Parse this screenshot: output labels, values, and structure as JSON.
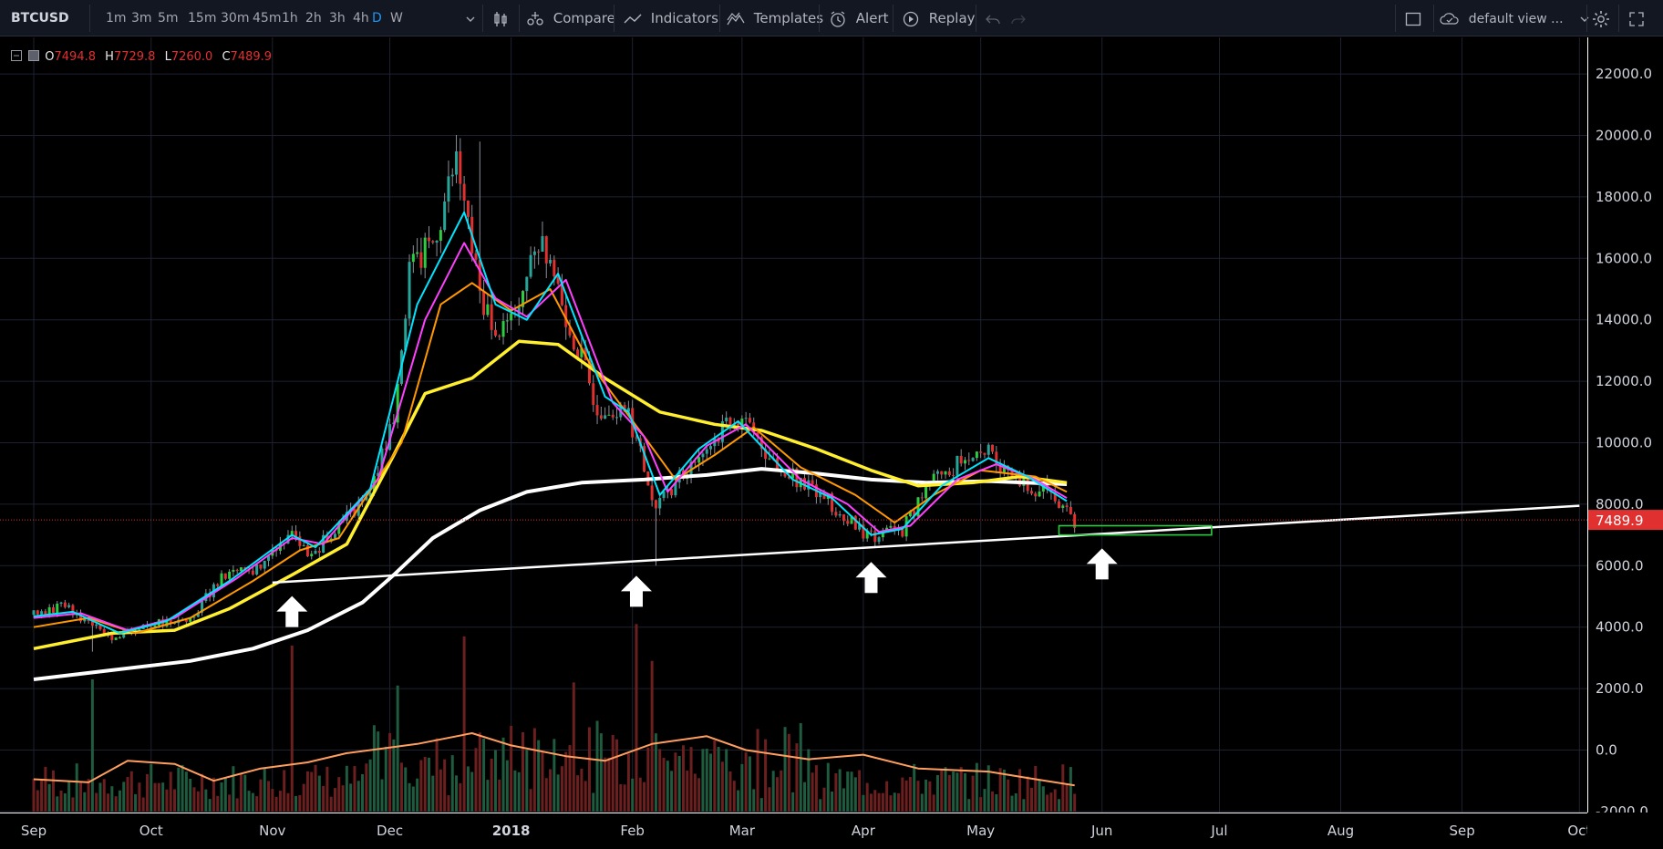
{
  "toolbar": {
    "symbol": "BTCUSD",
    "timeframes": [
      "1m",
      "3m",
      "5m",
      "15m",
      "30m",
      "45m",
      "1h",
      "2h",
      "3h",
      "4h",
      "D",
      "W"
    ],
    "active_timeframe": "D",
    "compare_label": "Compare",
    "indicators_label": "Indicators",
    "templates_label": "Templates",
    "alert_label": "Alert",
    "replay_label": "Replay",
    "layout_label": "default view ...",
    "icons": [
      "chevron-down-icon",
      "bar-style-icon",
      "compare-icon",
      "indicators-icon",
      "templates-icon",
      "alert-icon",
      "replay-icon",
      "undo-icon",
      "redo-icon",
      "square-icon",
      "cloud-icon",
      "gear-icon",
      "fullscreen-icon"
    ]
  },
  "legend": {
    "o_label": "O",
    "o_value": "7494.8",
    "h_label": "H",
    "h_value": "7729.8",
    "l_label": "L",
    "l_value": "7260.0",
    "c_label": "C",
    "c_value": "7489.9"
  },
  "last_price_label": "7489.9",
  "colors": {
    "up": "#26a69a",
    "up_bright": "#2ecc40",
    "down": "#e0302f",
    "ema_fast": "#00e5ff",
    "ema_mid": "#ff40ff",
    "ema_slow": "#ff9800",
    "ma_yellow": "#ffef2e",
    "ma_white": "#ffffff",
    "volume_ma": "#ff9e5e",
    "box": "#2ecc40",
    "last_price_bg": "#e0302f"
  },
  "chart_data": {
    "type": "candlestick",
    "symbol": "BTCUSD",
    "interval": "D",
    "ylim": [
      -2000,
      22000
    ],
    "price_ticks": [
      "22000.0",
      "20000.0",
      "18000.0",
      "16000.0",
      "14000.0",
      "12000.0",
      "10000.0",
      "8000.0",
      "6000.0",
      "4000.0",
      "2000.0",
      "0.0",
      "-2000.0"
    ],
    "price_tick_values": [
      22000,
      20000,
      18000,
      16000,
      14000,
      12000,
      10000,
      8000,
      6000,
      4000,
      2000,
      0,
      -2000
    ],
    "time_ticks": [
      "Sep",
      "Oct",
      "Nov",
      "Dec",
      "2018",
      "Feb",
      "Mar",
      "Apr",
      "May",
      "Jun",
      "Jul",
      "Aug",
      "Sep",
      "Oct"
    ],
    "time_tick_days": [
      0,
      30,
      61,
      91,
      122,
      153,
      181,
      212,
      242,
      273,
      303,
      334,
      365,
      395
    ],
    "price_path": [
      [
        0,
        4400
      ],
      [
        8,
        4700
      ],
      [
        14,
        4100
      ],
      [
        20,
        3700
      ],
      [
        28,
        4050
      ],
      [
        40,
        4300
      ],
      [
        48,
        5600
      ],
      [
        58,
        5900
      ],
      [
        66,
        7300
      ],
      [
        70,
        6200
      ],
      [
        76,
        7100
      ],
      [
        86,
        8200
      ],
      [
        92,
        10900
      ],
      [
        96,
        15500
      ],
      [
        102,
        16500
      ],
      [
        108,
        19200
      ],
      [
        114,
        14800
      ],
      [
        120,
        13500
      ],
      [
        130,
        16800
      ],
      [
        136,
        14200
      ],
      [
        144,
        11200
      ],
      [
        152,
        11000
      ],
      [
        159,
        7700
      ],
      [
        162,
        8400
      ],
      [
        170,
        9600
      ],
      [
        176,
        10400
      ],
      [
        182,
        10800
      ],
      [
        190,
        9100
      ],
      [
        198,
        8700
      ],
      [
        206,
        7700
      ],
      [
        214,
        6900
      ],
      [
        222,
        7200
      ],
      [
        228,
        8500
      ],
      [
        236,
        9300
      ],
      [
        244,
        9600
      ],
      [
        250,
        8700
      ],
      [
        258,
        8450
      ],
      [
        266,
        7490
      ]
    ],
    "wicks": [
      [
        15,
        3200
      ],
      [
        159,
        6000
      ],
      [
        114,
        19800
      ],
      [
        130,
        17200
      ]
    ],
    "ema_fast": [
      [
        0,
        4350
      ],
      [
        10,
        4500
      ],
      [
        22,
        3800
      ],
      [
        34,
        4200
      ],
      [
        50,
        5500
      ],
      [
        66,
        7000
      ],
      [
        72,
        6600
      ],
      [
        86,
        8500
      ],
      [
        98,
        14500
      ],
      [
        110,
        17500
      ],
      [
        118,
        14500
      ],
      [
        126,
        14000
      ],
      [
        134,
        15500
      ],
      [
        146,
        11500
      ],
      [
        152,
        11000
      ],
      [
        160,
        8300
      ],
      [
        170,
        9800
      ],
      [
        180,
        10700
      ],
      [
        194,
        8800
      ],
      [
        204,
        8200
      ],
      [
        214,
        7000
      ],
      [
        222,
        7200
      ],
      [
        232,
        8600
      ],
      [
        244,
        9500
      ],
      [
        254,
        8900
      ],
      [
        264,
        8100
      ]
    ],
    "ema_mid": [
      [
        0,
        4300
      ],
      [
        12,
        4450
      ],
      [
        24,
        3900
      ],
      [
        36,
        4300
      ],
      [
        52,
        5600
      ],
      [
        66,
        6900
      ],
      [
        74,
        6700
      ],
      [
        88,
        8800
      ],
      [
        100,
        14000
      ],
      [
        110,
        16500
      ],
      [
        118,
        14700
      ],
      [
        126,
        14100
      ],
      [
        136,
        15300
      ],
      [
        148,
        11300
      ],
      [
        156,
        10200
      ],
      [
        162,
        8400
      ],
      [
        172,
        9900
      ],
      [
        182,
        10600
      ],
      [
        196,
        8800
      ],
      [
        208,
        8000
      ],
      [
        216,
        7100
      ],
      [
        224,
        7300
      ],
      [
        236,
        8800
      ],
      [
        246,
        9300
      ],
      [
        256,
        8800
      ],
      [
        264,
        8200
      ]
    ],
    "ema_slow": [
      [
        0,
        4000
      ],
      [
        14,
        4300
      ],
      [
        26,
        3800
      ],
      [
        40,
        4300
      ],
      [
        56,
        5500
      ],
      [
        68,
        6500
      ],
      [
        78,
        6900
      ],
      [
        94,
        10000
      ],
      [
        104,
        14500
      ],
      [
        112,
        15200
      ],
      [
        122,
        14300
      ],
      [
        132,
        15000
      ],
      [
        142,
        12600
      ],
      [
        156,
        10200
      ],
      [
        164,
        8800
      ],
      [
        174,
        9600
      ],
      [
        184,
        10500
      ],
      [
        196,
        9200
      ],
      [
        210,
        8300
      ],
      [
        220,
        7400
      ],
      [
        230,
        8300
      ],
      [
        242,
        9100
      ],
      [
        256,
        8900
      ],
      [
        264,
        8400
      ]
    ],
    "ma_yellow": [
      [
        0,
        3300
      ],
      [
        20,
        3800
      ],
      [
        36,
        3900
      ],
      [
        50,
        4600
      ],
      [
        66,
        5700
      ],
      [
        80,
        6700
      ],
      [
        92,
        9600
      ],
      [
        100,
        11600
      ],
      [
        112,
        12100
      ],
      [
        124,
        13300
      ],
      [
        134,
        13200
      ],
      [
        146,
        12100
      ],
      [
        160,
        11000
      ],
      [
        174,
        10600
      ],
      [
        186,
        10400
      ],
      [
        200,
        9800
      ],
      [
        214,
        9100
      ],
      [
        226,
        8600
      ],
      [
        240,
        8700
      ],
      [
        252,
        8900
      ],
      [
        264,
        8700
      ]
    ],
    "ma_white": [
      [
        0,
        2300
      ],
      [
        20,
        2600
      ],
      [
        40,
        2900
      ],
      [
        56,
        3300
      ],
      [
        70,
        3900
      ],
      [
        84,
        4800
      ],
      [
        92,
        5700
      ],
      [
        102,
        6900
      ],
      [
        114,
        7800
      ],
      [
        126,
        8400
      ],
      [
        140,
        8700
      ],
      [
        156,
        8800
      ],
      [
        172,
        8950
      ],
      [
        186,
        9150
      ],
      [
        200,
        9000
      ],
      [
        214,
        8800
      ],
      [
        228,
        8700
      ],
      [
        244,
        8750
      ],
      [
        264,
        8650
      ]
    ],
    "trendline": [
      [
        61,
        5450
      ],
      [
        395,
        7950
      ]
    ],
    "arrows_days": [
      66,
      154,
      214,
      273
    ],
    "target_box": {
      "day_start": 262,
      "day_end": 301,
      "price_low": 7000,
      "price_high": 7300
    },
    "volume_ma": [
      [
        0,
        -950
      ],
      [
        14,
        -1050
      ],
      [
        24,
        -350
      ],
      [
        36,
        -450
      ],
      [
        46,
        -1000
      ],
      [
        58,
        -600
      ],
      [
        70,
        -400
      ],
      [
        80,
        -100
      ],
      [
        98,
        200
      ],
      [
        112,
        550
      ],
      [
        122,
        150
      ],
      [
        136,
        -200
      ],
      [
        146,
        -350
      ],
      [
        158,
        200
      ],
      [
        172,
        450
      ],
      [
        182,
        0
      ],
      [
        198,
        -300
      ],
      [
        212,
        -150
      ],
      [
        226,
        -600
      ],
      [
        244,
        -700
      ],
      [
        256,
        -950
      ],
      [
        266,
        -1150
      ]
    ],
    "volume_spikes": [
      [
        15,
        2300
      ],
      [
        66,
        3400
      ],
      [
        110,
        3700
      ],
      [
        154,
        4100
      ],
      [
        158,
        2900
      ],
      [
        138,
        2200
      ],
      [
        93,
        2100
      ]
    ]
  }
}
